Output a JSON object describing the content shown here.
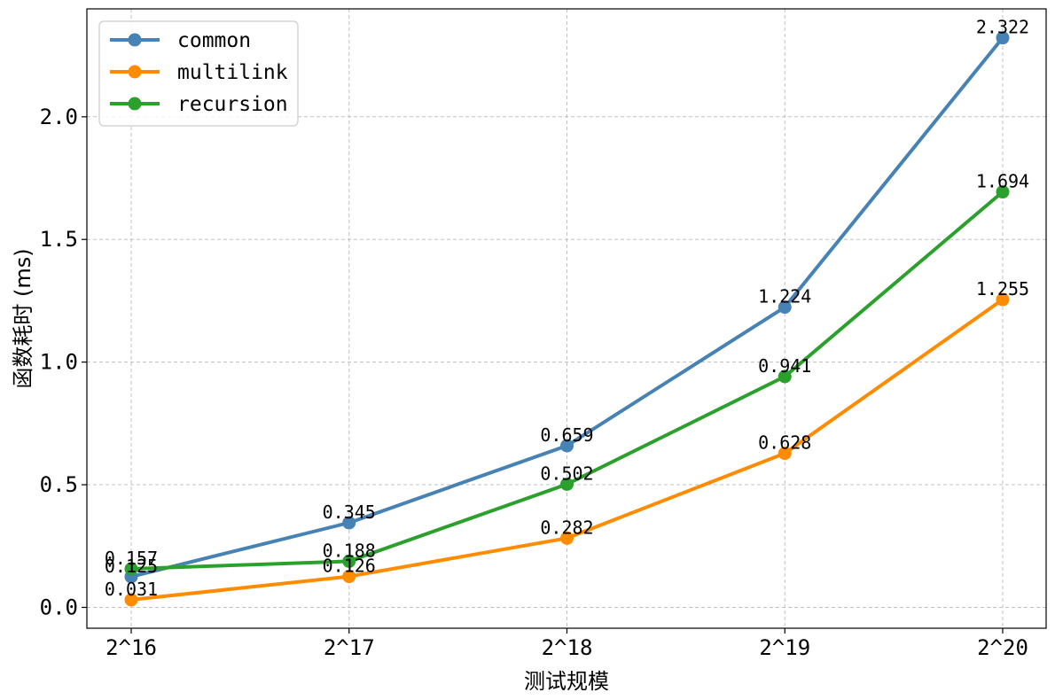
{
  "chart_data": {
    "type": "line",
    "title": "",
    "xlabel": "测试规模",
    "ylabel": "函数耗时 (ms)",
    "categories": [
      "2^16",
      "2^17",
      "2^18",
      "2^19",
      "2^20"
    ],
    "ylim": [
      -0.085,
      2.44
    ],
    "yticks": [
      0.0,
      0.5,
      1.0,
      1.5,
      2.0
    ],
    "ytick_labels": [
      "0.0",
      "0.5",
      "1.0",
      "1.5",
      "2.0"
    ],
    "grid": true,
    "legend_position": "top-left",
    "series": [
      {
        "name": "common",
        "color": "#4682B4",
        "values": [
          0.125,
          0.345,
          0.659,
          1.224,
          2.322
        ],
        "labels": [
          "0.125",
          "0.345",
          "0.659",
          "1.224",
          "2.322"
        ]
      },
      {
        "name": "multilink",
        "color": "#FF8C00",
        "values": [
          0.031,
          0.126,
          0.282,
          0.628,
          1.255
        ],
        "labels": [
          "0.031",
          "0.126",
          "0.282",
          "0.628",
          "1.255"
        ]
      },
      {
        "name": "recursion",
        "color": "#2CA02C",
        "values": [
          0.157,
          0.188,
          0.502,
          0.941,
          1.694
        ],
        "labels": [
          "0.157",
          "0.188",
          "0.502",
          "0.941",
          "1.694"
        ]
      }
    ]
  }
}
